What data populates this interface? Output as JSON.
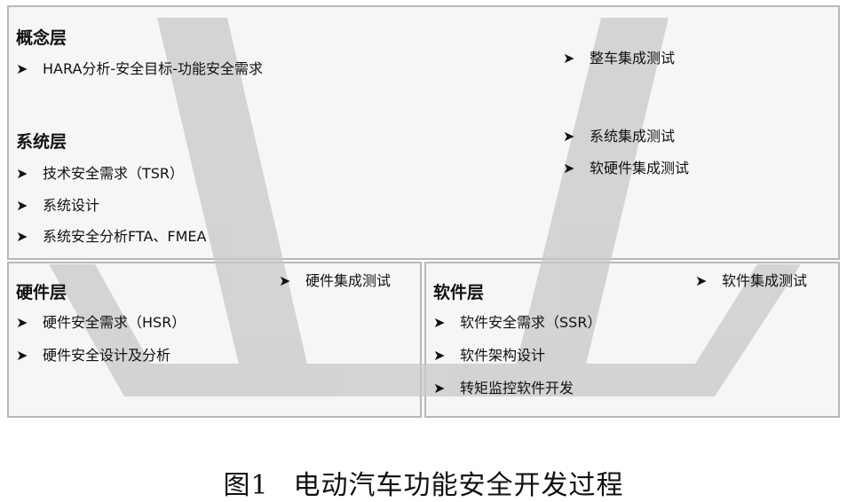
{
  "concept_system_box": {
    "concept_layer": {
      "title": "概念层",
      "items": [
        "HARA分析-安全目标-功能安全需求"
      ]
    },
    "system_layer": {
      "title": "系统层",
      "items": [
        "技术安全需求（TSR）",
        "系统设计",
        "系统安全分析FTA、FMEA"
      ]
    },
    "tests": [
      "整车集成测试",
      "系统集成测试",
      "软硬件集成测试"
    ]
  },
  "hardware_box": {
    "title": "硬件层",
    "items": [
      "硬件安全需求（HSR）",
      "硬件安全设计及分析"
    ],
    "test": "硬件集成测试"
  },
  "software_box": {
    "title": "软件层",
    "items": [
      "软件安全需求（SSR）",
      "软件架构设计",
      "转矩监控软件开发"
    ],
    "test": "软件集成测试"
  },
  "bullet_icon": "arrowhead-bullet",
  "caption": {
    "label": "图1",
    "text": "电动汽车功能安全开发过程"
  },
  "colors": {
    "v_shape": "#c8c8c8",
    "box_border": "#b8b8b8",
    "box_fill": "#f6f6f6"
  }
}
